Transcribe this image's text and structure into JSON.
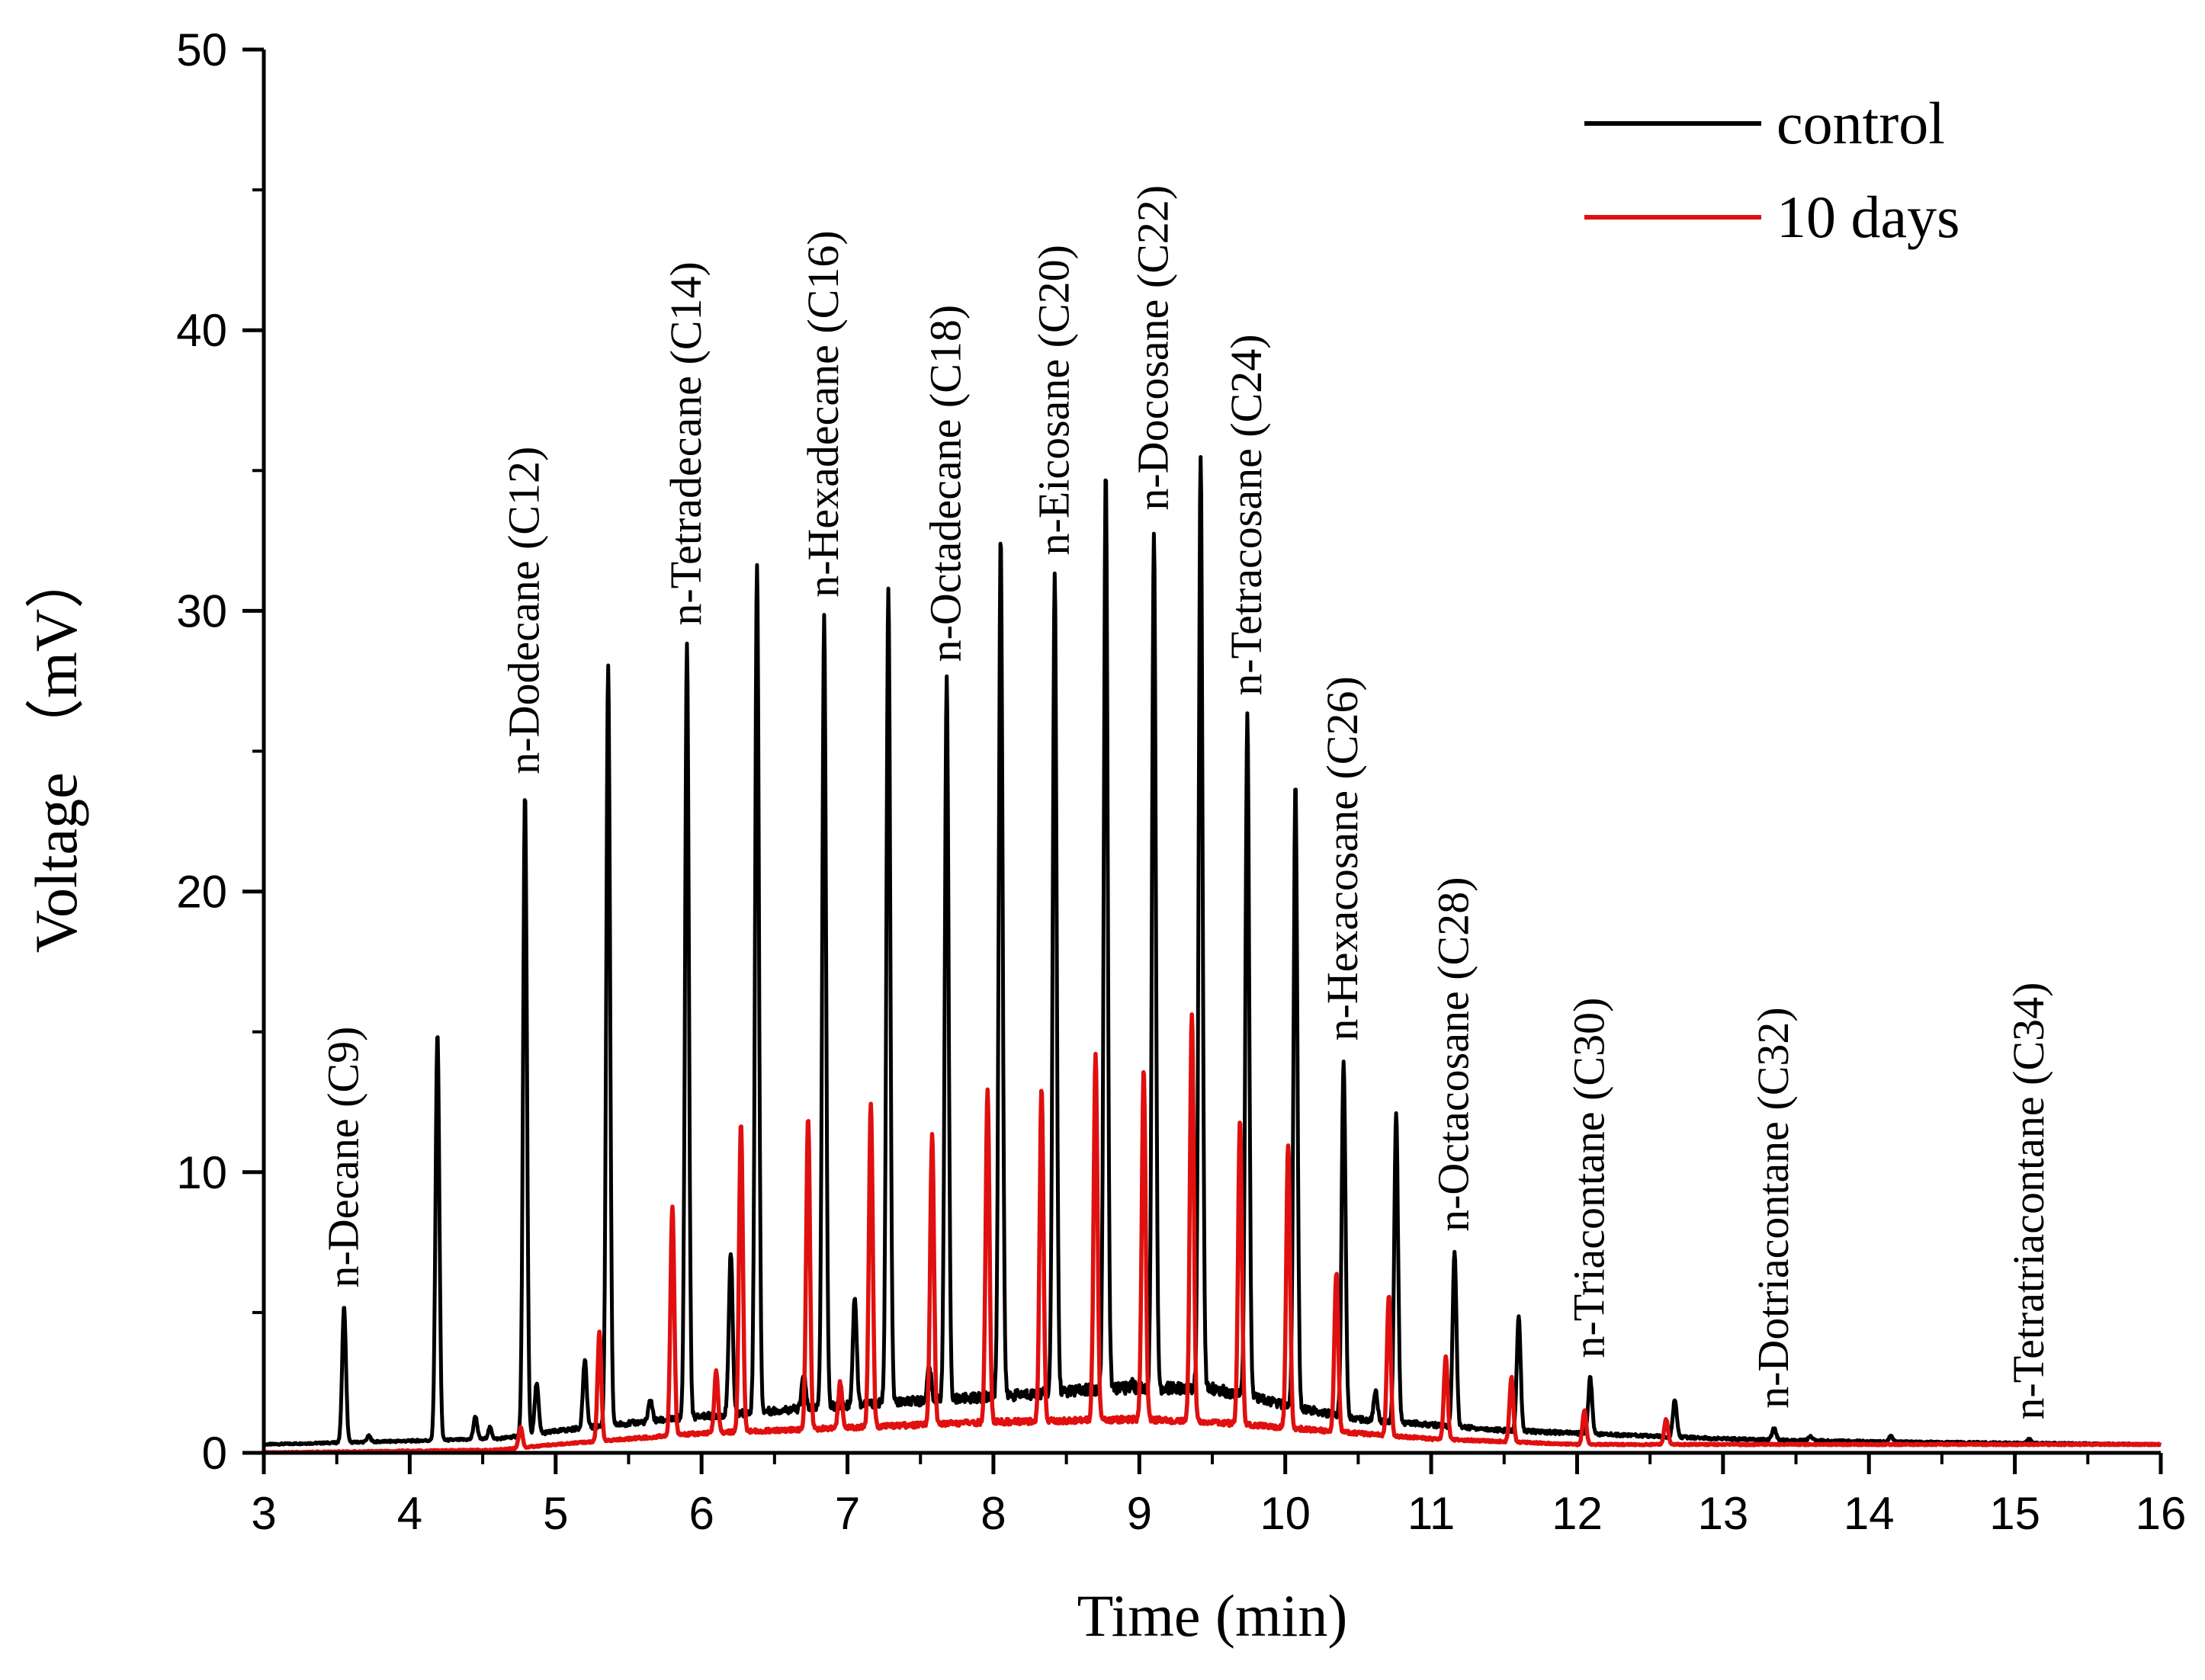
{
  "chart_data": {
    "type": "line",
    "title": "",
    "xlabel": "Time (min)",
    "ylabel": "Voltage （mV）",
    "xlim": [
      3,
      16
    ],
    "ylim": [
      0,
      50
    ],
    "x_ticks": [
      3,
      4,
      5,
      6,
      7,
      8,
      9,
      10,
      11,
      12,
      13,
      14,
      15,
      16
    ],
    "y_ticks": [
      0,
      10,
      20,
      30,
      40,
      50
    ],
    "legend": {
      "position": "top-right",
      "entries": [
        {
          "name": "control",
          "color": "#000000"
        },
        {
          "name": "10 days",
          "color": "#e01010"
        }
      ]
    },
    "series": [
      {
        "name": "control",
        "color": "#000000",
        "baseline": [
          [
            3.0,
            0.3
          ],
          [
            4.6,
            0.5
          ],
          [
            5.2,
            0.9
          ],
          [
            6.0,
            1.3
          ],
          [
            7.0,
            1.7
          ],
          [
            8.0,
            2.0
          ],
          [
            8.8,
            2.3
          ],
          [
            9.5,
            2.3
          ],
          [
            10.0,
            1.7
          ],
          [
            10.5,
            1.2
          ],
          [
            11.0,
            1.0
          ],
          [
            11.5,
            0.8
          ],
          [
            12.0,
            0.7
          ],
          [
            13.0,
            0.5
          ],
          [
            14.0,
            0.4
          ],
          [
            16.0,
            0.3
          ]
        ],
        "peaks": [
          [
            3.55,
            5.2
          ],
          [
            3.72,
            0.6
          ],
          [
            4.19,
            15.0
          ],
          [
            4.45,
            1.3
          ],
          [
            4.55,
            0.9
          ],
          [
            4.79,
            23.5
          ],
          [
            4.87,
            2.5
          ],
          [
            5.2,
            3.3
          ],
          [
            5.36,
            28.0
          ],
          [
            5.65,
            1.9
          ],
          [
            5.9,
            28.8
          ],
          [
            6.2,
            7.2
          ],
          [
            6.38,
            31.7
          ],
          [
            6.7,
            2.8
          ],
          [
            6.84,
            29.8
          ],
          [
            7.05,
            5.6
          ],
          [
            7.28,
            30.8
          ],
          [
            7.56,
            3.1
          ],
          [
            7.68,
            27.5
          ],
          [
            8.05,
            32.7
          ],
          [
            8.42,
            31.3
          ],
          [
            8.77,
            35.1
          ],
          [
            8.95,
            2.5
          ],
          [
            9.1,
            32.9
          ],
          [
            9.42,
            35.5
          ],
          [
            9.74,
            26.3
          ],
          [
            10.07,
            23.8
          ],
          [
            10.4,
            14.0
          ],
          [
            10.62,
            2.2
          ],
          [
            10.76,
            12.1
          ],
          [
            11.16,
            7.2
          ],
          [
            11.6,
            4.9
          ],
          [
            12.09,
            2.7
          ],
          [
            12.67,
            1.9
          ],
          [
            13.35,
            0.9
          ],
          [
            13.6,
            0.6
          ],
          [
            14.15,
            0.6
          ],
          [
            15.1,
            0.5
          ]
        ]
      },
      {
        "name": "10 days",
        "color": "#e01010",
        "baseline": [
          [
            3.0,
            0.0
          ],
          [
            4.6,
            0.1
          ],
          [
            5.0,
            0.3
          ],
          [
            6.0,
            0.7
          ],
          [
            7.0,
            0.9
          ],
          [
            8.0,
            1.1
          ],
          [
            9.0,
            1.2
          ],
          [
            9.5,
            1.1
          ],
          [
            10.0,
            0.9
          ],
          [
            10.5,
            0.7
          ],
          [
            11.0,
            0.5
          ],
          [
            11.5,
            0.4
          ],
          [
            12.0,
            0.3
          ],
          [
            13.0,
            0.3
          ],
          [
            16.0,
            0.3
          ]
        ],
        "peaks": [
          [
            4.76,
            0.9
          ],
          [
            5.3,
            4.3
          ],
          [
            5.8,
            8.8
          ],
          [
            6.1,
            2.9
          ],
          [
            6.27,
            11.8
          ],
          [
            6.73,
            12.0
          ],
          [
            6.95,
            2.5
          ],
          [
            7.16,
            12.5
          ],
          [
            7.58,
            11.3
          ],
          [
            7.96,
            12.9
          ],
          [
            8.33,
            13.0
          ],
          [
            8.7,
            14.2
          ],
          [
            9.03,
            13.6
          ],
          [
            9.36,
            15.7
          ],
          [
            9.69,
            11.8
          ],
          [
            10.02,
            11.0
          ],
          [
            10.35,
            6.4
          ],
          [
            10.71,
            5.6
          ],
          [
            11.1,
            3.4
          ],
          [
            11.55,
            2.7
          ],
          [
            12.05,
            1.5
          ],
          [
            12.61,
            1.2
          ]
        ]
      }
    ],
    "annotations": [
      {
        "text": "n-Decane (C9)",
        "x": 3.55,
        "y": 5.2
      },
      {
        "text": "n-Dodecane (C12)",
        "x": 4.79,
        "y": 23.5
      },
      {
        "text": "n-Tetradecane (C14)",
        "x": 5.9,
        "y": 28.8
      },
      {
        "text": "n-Hexadecane (C16)",
        "x": 6.84,
        "y": 29.8
      },
      {
        "text": "n-Octadecane (C18)",
        "x": 7.68,
        "y": 27.5
      },
      {
        "text": "n-Eicosane (C20)",
        "x": 8.42,
        "y": 31.3
      },
      {
        "text": "n-Docosane (C22)",
        "x": 9.1,
        "y": 32.9
      },
      {
        "text": "n-Tetracosane (C24)",
        "x": 9.74,
        "y": 26.3
      },
      {
        "text": "n-Hexacosane (C26)",
        "x": 10.4,
        "y": 14.0
      },
      {
        "text": "n-Octacosane (C28)",
        "x": 11.16,
        "y": 7.2
      },
      {
        "text": "n-Triacontane (C30)",
        "x": 12.09,
        "y": 2.7
      },
      {
        "text": "n-Dotriacontane (C32)",
        "x": 13.35,
        "y": 0.9
      },
      {
        "text": "n-Tetratriacontane (C34)",
        "x": 15.1,
        "y": 0.5
      }
    ]
  }
}
